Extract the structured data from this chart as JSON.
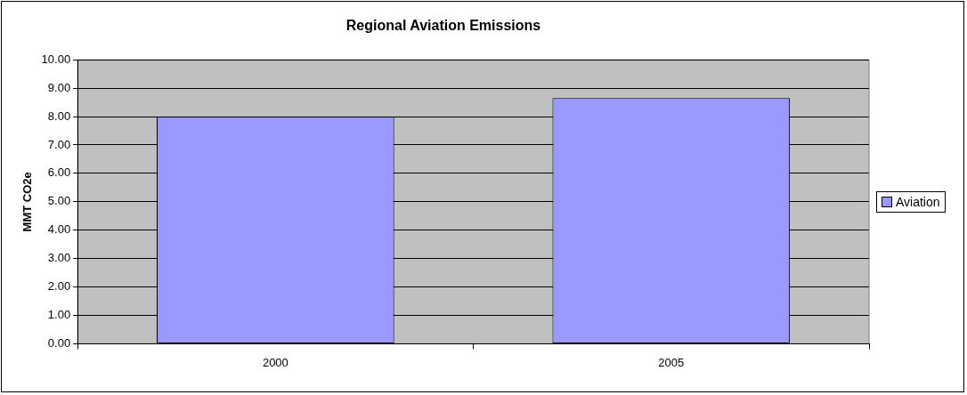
{
  "chart_data": {
    "type": "bar",
    "title": "Regional Aviation Emissions",
    "ylabel": "MMT CO2e",
    "categories": [
      "2000",
      "2005"
    ],
    "series": [
      {
        "name": "Aviation",
        "color": "#9999ff",
        "values": [
          8.0,
          8.65
        ]
      }
    ],
    "ylim": [
      0,
      10
    ],
    "yticks": [
      {
        "value": 0,
        "label": "0.00"
      },
      {
        "value": 1,
        "label": "1.00"
      },
      {
        "value": 2,
        "label": "2.00"
      },
      {
        "value": 3,
        "label": "3.00"
      },
      {
        "value": 4,
        "label": "4.00"
      },
      {
        "value": 5,
        "label": "5.00"
      },
      {
        "value": 6,
        "label": "6.00"
      },
      {
        "value": 7,
        "label": "7.00"
      },
      {
        "value": 8,
        "label": "8.00"
      },
      {
        "value": 9,
        "label": "9.00"
      },
      {
        "value": 10,
        "label": "10.00"
      }
    ],
    "grid": "y",
    "legend": "right"
  }
}
